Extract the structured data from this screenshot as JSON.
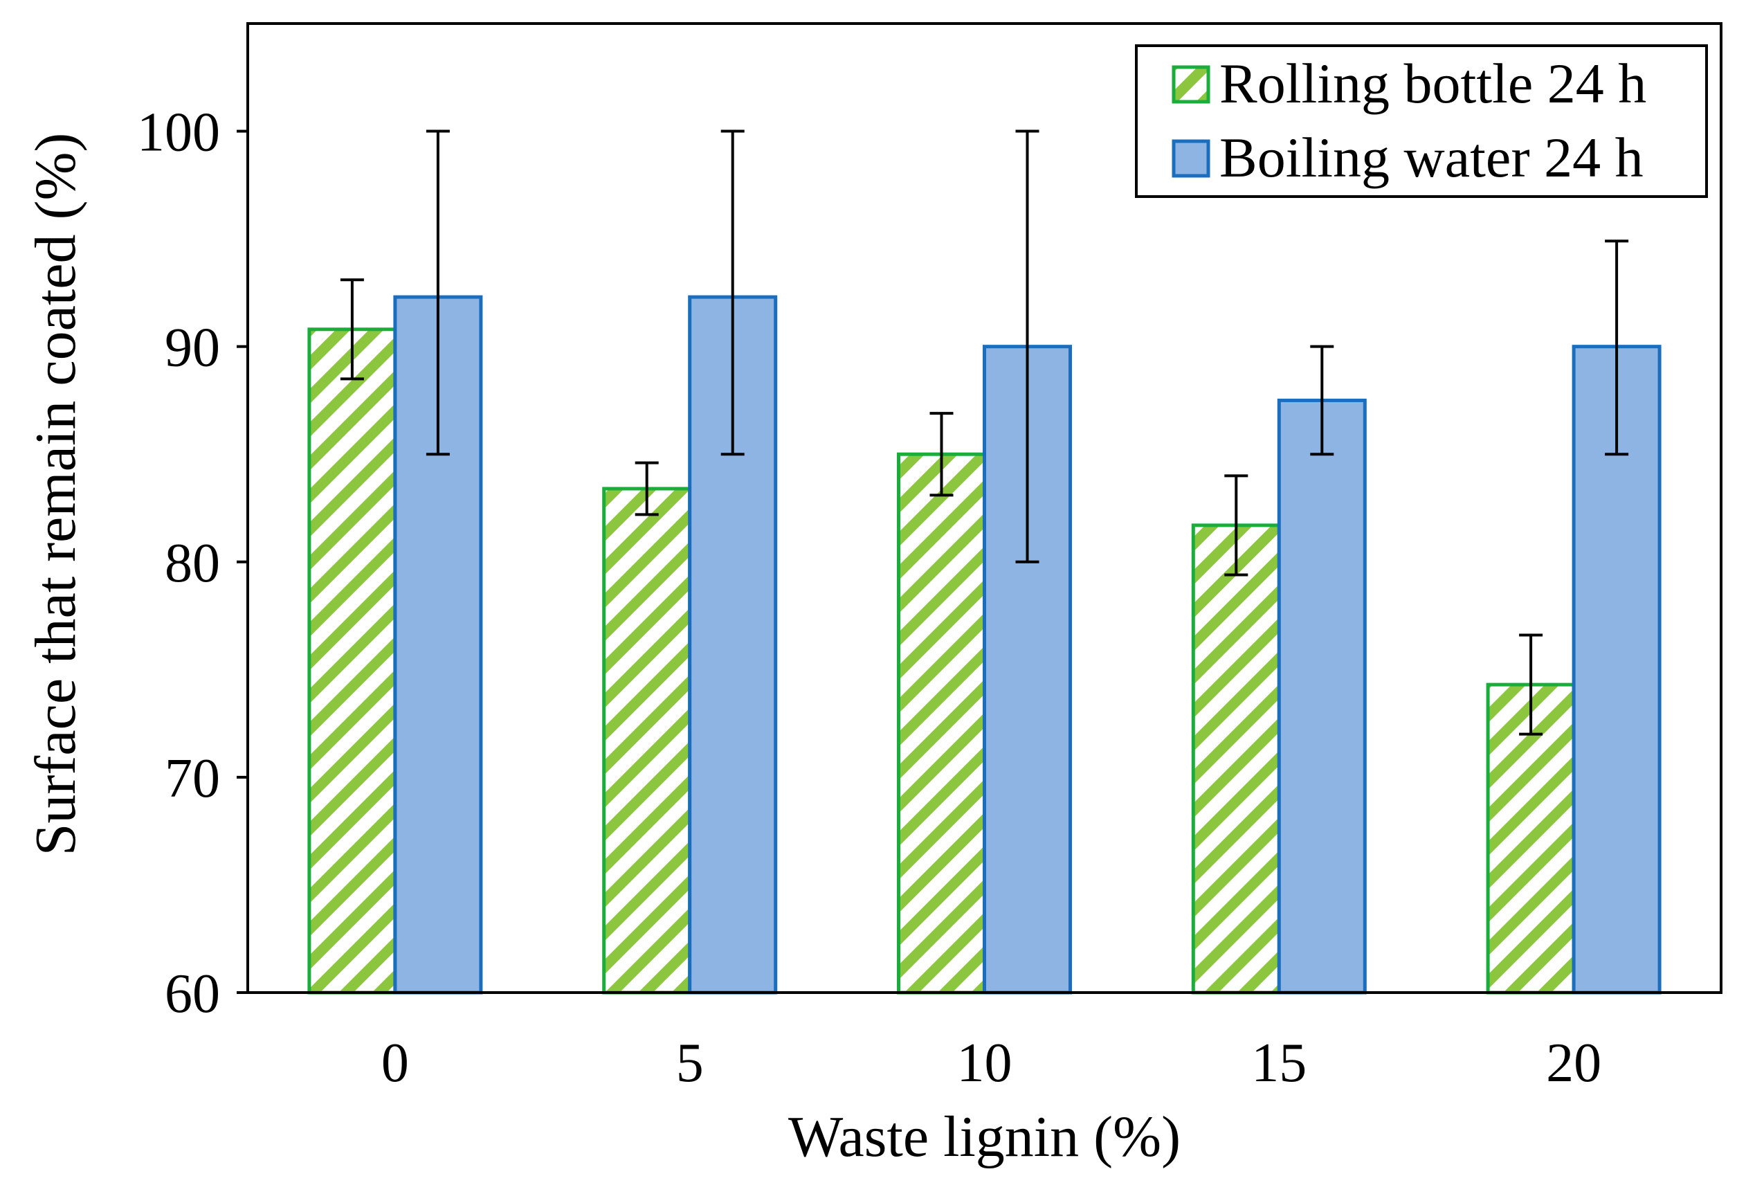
{
  "chart_data": {
    "type": "bar",
    "title": "",
    "xlabel": "Waste lignin (%)",
    "ylabel": "Surface that remain coated (%)",
    "categories": [
      "0",
      "5",
      "10",
      "15",
      "20"
    ],
    "ylim": [
      60,
      105
    ],
    "yticks": [
      60,
      70,
      80,
      90,
      100
    ],
    "grid": false,
    "legend_position": "top-right",
    "series": [
      {
        "name": "Rolling bottle 24 h",
        "pattern": "diagonal-hatch",
        "stroke": "#1aad3c",
        "hatch_color": "#8cc63f",
        "values": [
          90.8,
          83.4,
          85.0,
          81.7,
          74.3
        ],
        "error": [
          2.3,
          1.2,
          1.9,
          2.3,
          2.3
        ]
      },
      {
        "name": "Boiling water 24 h",
        "pattern": "solid",
        "stroke": "#1a6ebd",
        "fill": "#8db4e2",
        "values": [
          92.3,
          92.3,
          90.0,
          87.5,
          90.0
        ],
        "error_upper": [
          100.0,
          100.0,
          100.0,
          90.0,
          94.9
        ],
        "error_lower": [
          85.0,
          85.0,
          80.0,
          85.0,
          85.0
        ]
      }
    ]
  }
}
